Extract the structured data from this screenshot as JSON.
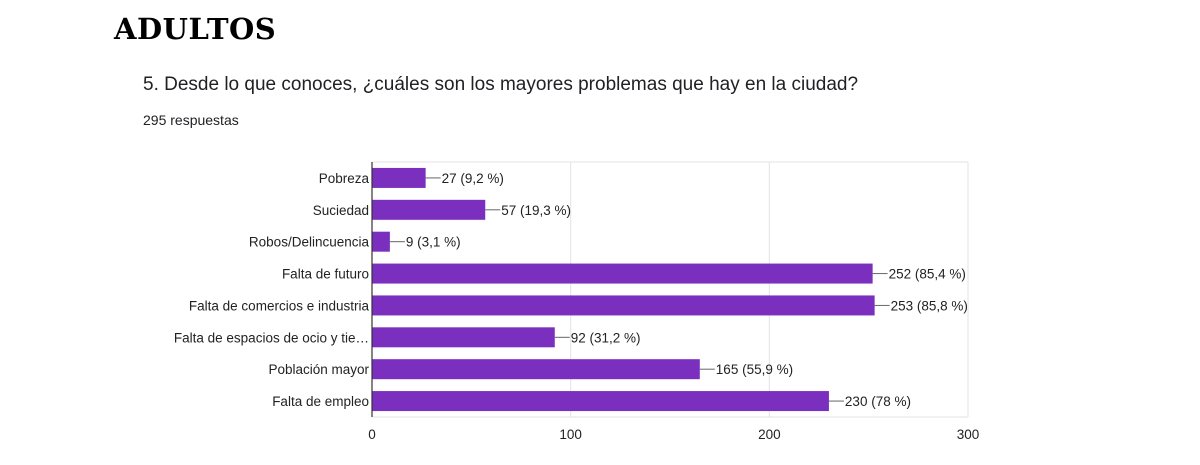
{
  "page": {
    "heading": "ADULTOS",
    "question": "5. Desde lo que conoces, ¿cuáles son los mayores problemas que hay en la ciudad?",
    "responses": "295 respuestas"
  },
  "colors": {
    "bar": "#7b2fbe",
    "grid": "#e3e3e3",
    "axis": "#333333"
  },
  "chart_data": {
    "type": "bar",
    "orientation": "horizontal",
    "categories": [
      "Pobreza",
      "Suciedad",
      "Robos/Delincuencia",
      "Falta de futuro",
      "Falta de comercios e industria",
      "Falta de espacios de ocio y tie…",
      "Población mayor",
      "Falta de empleo"
    ],
    "values": [
      27,
      57,
      9,
      252,
      253,
      92,
      165,
      230
    ],
    "data_labels": [
      "27 (9,2 %)",
      "57 (19,3 %)",
      "9 (3,1 %)",
      "252 (85,4 %)",
      "253 (85,8 %)",
      "92 (31,2 %)",
      "165 (55,9 %)",
      "230 (78 %)"
    ],
    "xlim": [
      0,
      300
    ],
    "xticks": [
      "0",
      "100",
      "200",
      "300"
    ],
    "grid": true,
    "legend": false
  }
}
